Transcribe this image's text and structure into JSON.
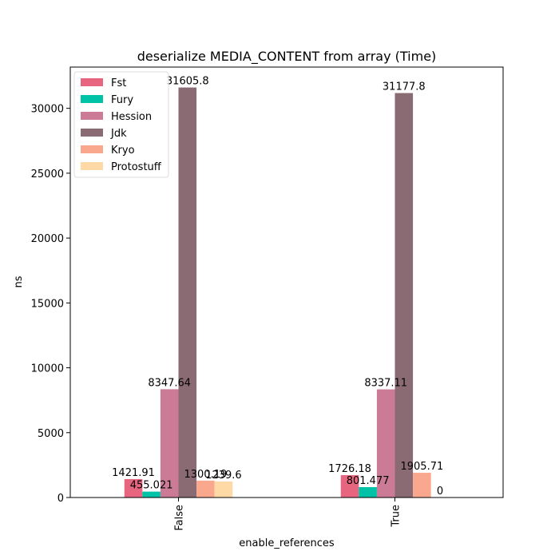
{
  "chart_data": {
    "type": "bar",
    "title": "deserialize MEDIA_CONTENT from array (Time)",
    "xlabel": "enable_references",
    "ylabel": "ns",
    "categories": [
      "False",
      "True"
    ],
    "ylim": [
      0,
      33180
    ],
    "yticks": [
      0,
      5000,
      10000,
      15000,
      20000,
      25000,
      30000
    ],
    "ytick_labels": [
      "0",
      "5000",
      "10000",
      "15000",
      "20000",
      "25000",
      "30000"
    ],
    "grid": false,
    "legend_position": "top-left",
    "series": [
      {
        "name": "Fst",
        "color": "#e8657f",
        "values": [
          1421.91,
          1726.18
        ],
        "labels": [
          "1421.91",
          "1726.18"
        ]
      },
      {
        "name": "Fury",
        "color": "#00c2a6",
        "values": [
          455.021,
          801.477
        ],
        "labels": [
          "455.021",
          "801.477"
        ]
      },
      {
        "name": "Hession",
        "color": "#cc7b97",
        "values": [
          8347.64,
          8337.11
        ],
        "labels": [
          "8347.64",
          "8337.11"
        ]
      },
      {
        "name": "Jdk",
        "color": "#8a6b74",
        "values": [
          31605.8,
          31177.8
        ],
        "labels": [
          "31605.8",
          "31177.8"
        ]
      },
      {
        "name": "Kryo",
        "color": "#f9a88e",
        "values": [
          1300.19,
          1905.71
        ],
        "labels": [
          "1300.19",
          "1905.71"
        ]
      },
      {
        "name": "Protostuff",
        "color": "#fed9a6",
        "values": [
          1239.6,
          0
        ],
        "labels": [
          "1239.6",
          "0"
        ]
      }
    ]
  }
}
